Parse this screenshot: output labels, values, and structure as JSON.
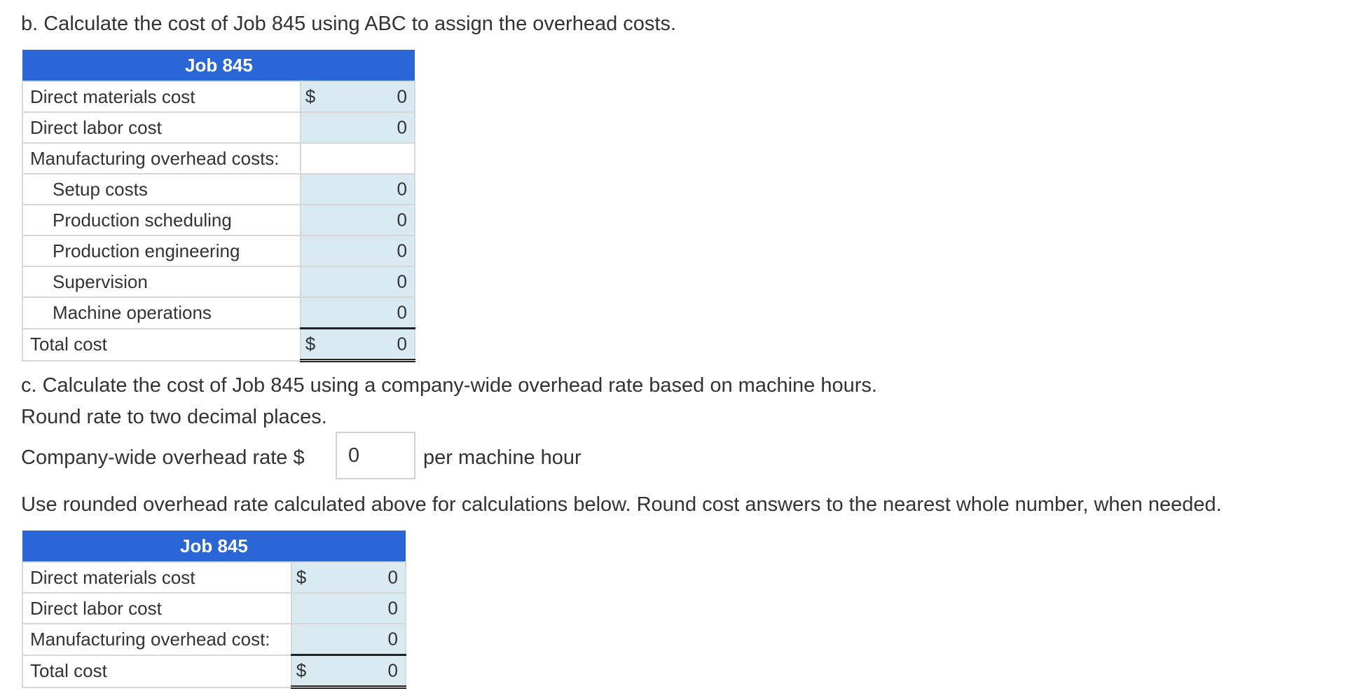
{
  "part_b": {
    "title": "b. Calculate the cost of Job 845 using ABC to assign the overhead costs.",
    "table": {
      "header": "Job 845",
      "rows": [
        {
          "label": "Direct materials cost",
          "dollar": "$",
          "value": "0"
        },
        {
          "label": "Direct labor cost",
          "dollar": "",
          "value": "0"
        },
        {
          "label": "Manufacturing overhead costs:",
          "dollar": "",
          "value": ""
        },
        {
          "label": "Setup costs",
          "dollar": "",
          "value": "0"
        },
        {
          "label": "Production scheduling",
          "dollar": "",
          "value": "0"
        },
        {
          "label": "Production engineering",
          "dollar": "",
          "value": "0"
        },
        {
          "label": "Supervision",
          "dollar": "",
          "value": "0"
        },
        {
          "label": "Machine operations",
          "dollar": "",
          "value": "0"
        },
        {
          "label": "Total cost",
          "dollar": "$",
          "value": "0"
        }
      ]
    }
  },
  "part_c": {
    "title": "c. Calculate the cost of Job 845 using a company-wide overhead rate based on machine hours.",
    "instruction": "Round rate to two decimal places.",
    "rate_label": "Company-wide overhead rate $",
    "rate_value": "0",
    "rate_suffix": "per machine hour",
    "note": "Use rounded overhead rate calculated above for calculations below. Round cost answers to the nearest whole number, when needed.",
    "table": {
      "header": "Job 845",
      "rows": [
        {
          "label": "Direct materials cost",
          "dollar": "$",
          "value": "0"
        },
        {
          "label": "Direct labor cost",
          "dollar": "",
          "value": "0"
        },
        {
          "label": "Manufacturing overhead cost:",
          "dollar": "",
          "value": "0"
        },
        {
          "label": "Total cost",
          "dollar": "$",
          "value": "0"
        }
      ]
    }
  },
  "colors": {
    "header_blue": "#2b66d6",
    "input_cell": "#d9eaf3",
    "text": "#333333"
  }
}
